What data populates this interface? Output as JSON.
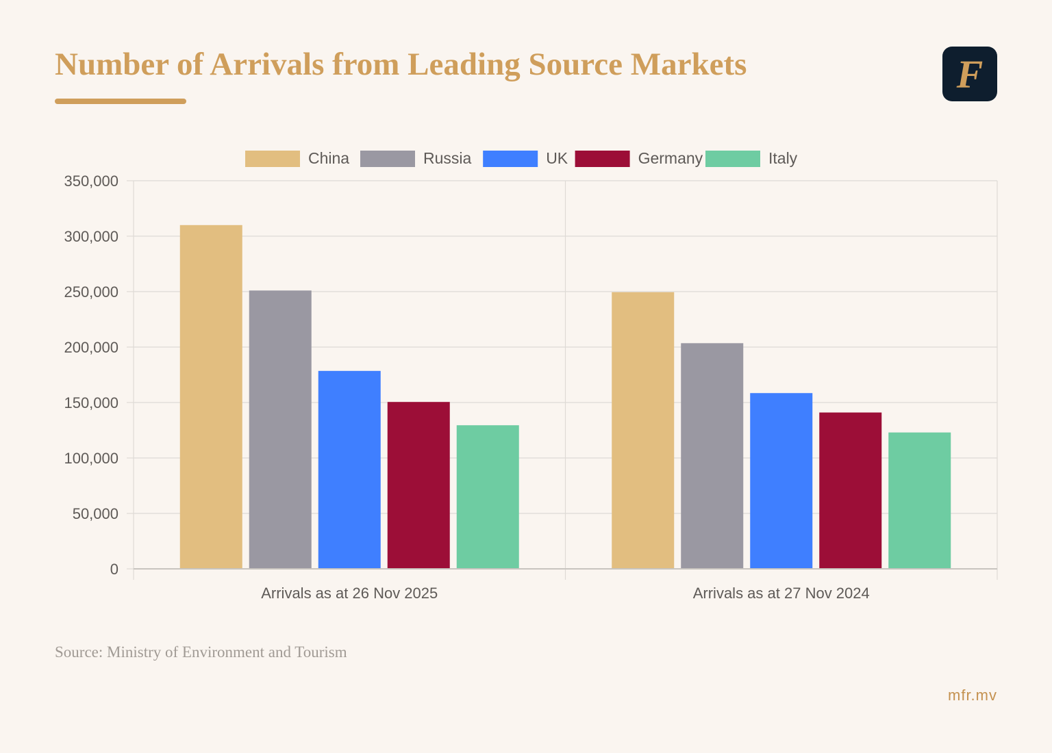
{
  "page": {
    "title": "Number of Arrivals from Leading Source Markets",
    "source": "Source: Ministry of Environment and Tourism",
    "site": "mfr.mv",
    "logo_letter": "F"
  },
  "colors": {
    "background": "#faf5f0",
    "accent": "#cf9e5b",
    "logo_bg": "#0e1e2e"
  },
  "chart_data": {
    "type": "bar",
    "title": "",
    "xlabel": "",
    "ylabel": "",
    "categories": [
      "Arrivals as at 26 Nov 2025",
      "Arrivals as at 27 Nov 2024"
    ],
    "series": [
      {
        "name": "China",
        "color": "#e2be80",
        "values": [
          310000,
          249500
        ]
      },
      {
        "name": "Russia",
        "color": "#9a98a2",
        "values": [
          251000,
          203500
        ]
      },
      {
        "name": "UK",
        "color": "#3f7fff",
        "values": [
          178500,
          158500
        ]
      },
      {
        "name": "Germany",
        "color": "#9c0e37",
        "values": [
          150500,
          141000
        ]
      },
      {
        "name": "Italy",
        "color": "#6ecca2",
        "values": [
          129500,
          123000
        ]
      }
    ],
    "ylim": [
      0,
      350000
    ],
    "yticks": [
      0,
      50000,
      100000,
      150000,
      200000,
      250000,
      300000,
      350000
    ],
    "ytick_labels": [
      "0",
      "50,000",
      "100,000",
      "150,000",
      "200,000",
      "250,000",
      "300,000",
      "350,000"
    ],
    "grid": true,
    "legend_position": "top-center"
  }
}
